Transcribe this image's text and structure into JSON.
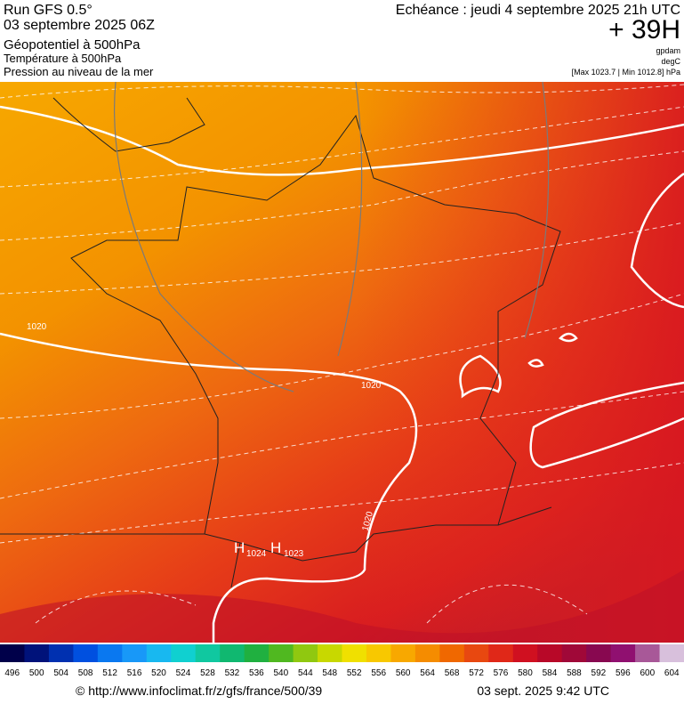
{
  "header": {
    "run": "Run GFS 0.5°",
    "date": "03 septembre 2025 06Z",
    "line1": "Géopotentiel à 500hPa",
    "line2": "Température à 500hPa",
    "line3": "Pression au niveau de la mer",
    "echeance": "Echéance : jeudi 4 septembre 2025 21h UTC",
    "step": "+ 39H",
    "unit1": "gpdam",
    "unit2": "degC",
    "range": "[Max 1023.7 | Min 1012.8] hPa"
  },
  "map": {
    "isobar_labels": [
      "1020",
      "1020",
      "1020"
    ],
    "highs": [
      {
        "label": "H",
        "value": "1024"
      },
      {
        "label": "H",
        "value": "1023"
      }
    ]
  },
  "colorbar": {
    "labels": [
      496,
      500,
      504,
      508,
      512,
      516,
      520,
      524,
      528,
      532,
      536,
      540,
      544,
      548,
      552,
      556,
      560,
      564,
      568,
      572,
      576,
      580,
      584,
      588,
      592,
      596,
      600,
      604
    ],
    "colors": [
      "#00004a",
      "#00127a",
      "#0030b0",
      "#0050e0",
      "#0a78f0",
      "#1898f8",
      "#18b8f0",
      "#10d0d0",
      "#10c8a0",
      "#10b870",
      "#20b040",
      "#50b820",
      "#90c810",
      "#c8d800",
      "#f0e000",
      "#f8c800",
      "#f8a800",
      "#f58c00",
      "#f06800",
      "#e84810",
      "#e02818",
      "#d01020",
      "#b80828",
      "#a00838",
      "#880850",
      "#901070",
      "#a85898",
      "#d8c0dc"
    ]
  },
  "footer": {
    "url": "© http://www.infoclimat.fr/z/gfs/france/500/39",
    "time": "03 sept. 2025  9:42 UTC"
  }
}
